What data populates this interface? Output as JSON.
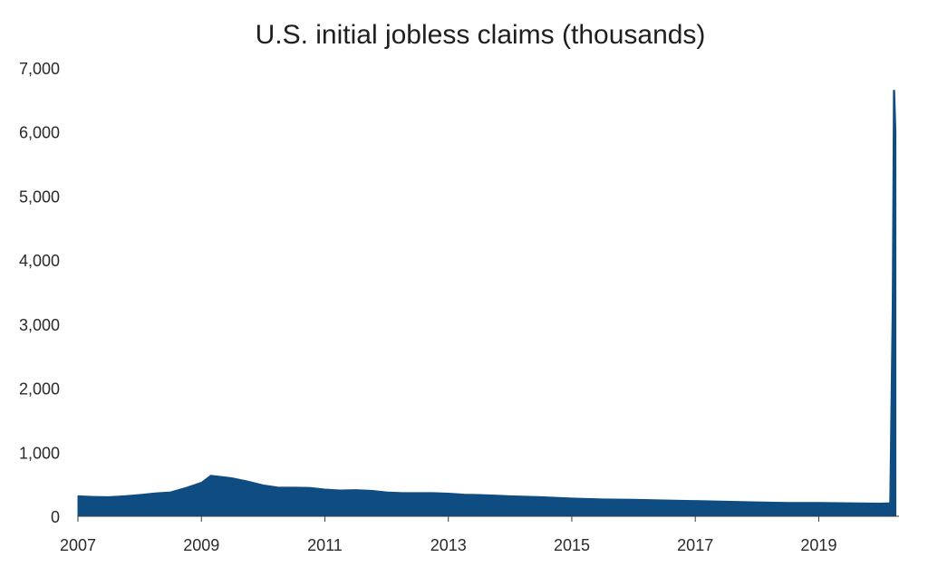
{
  "chart_data": {
    "type": "area",
    "title": "U.S. initial jobless claims (thousands)",
    "xlabel": "",
    "ylabel": "",
    "xlim": [
      2007.0,
      2020.3
    ],
    "ylim": [
      0,
      7000
    ],
    "grid": false,
    "x_ticks": [
      "2007",
      "2009",
      "2011",
      "2013",
      "2015",
      "2017",
      "2019"
    ],
    "y_ticks": [
      "0",
      "1,000",
      "2,000",
      "3,000",
      "4,000",
      "5,000",
      "6,000",
      "7,000"
    ],
    "color": "#0f4c81",
    "series": [
      {
        "x": [
          2007.0,
          2007.25,
          2007.5,
          2007.75,
          2008.0,
          2008.25,
          2008.5,
          2008.75,
          2009.0,
          2009.15,
          2009.25,
          2009.5,
          2009.75,
          2010.0,
          2010.25,
          2010.5,
          2010.75,
          2011.0,
          2011.25,
          2011.5,
          2011.75,
          2012.0,
          2012.25,
          2012.5,
          2012.75,
          2013.0,
          2013.25,
          2013.5,
          2013.75,
          2014.0,
          2014.5,
          2015.0,
          2015.5,
          2016.0,
          2016.5,
          2017.0,
          2017.5,
          2018.0,
          2018.5,
          2019.0,
          2019.5,
          2020.0,
          2020.15,
          2020.19,
          2020.21,
          2020.23,
          2020.25
        ],
        "values": [
          320,
          310,
          305,
          320,
          340,
          365,
          380,
          450,
          530,
          640,
          630,
          600,
          550,
          490,
          455,
          455,
          450,
          425,
          410,
          415,
          405,
          380,
          370,
          370,
          370,
          360,
          345,
          340,
          330,
          320,
          305,
          285,
          270,
          265,
          255,
          245,
          235,
          225,
          215,
          215,
          210,
          205,
          210,
          3300,
          6650,
          6650,
          6000
        ]
      }
    ]
  }
}
